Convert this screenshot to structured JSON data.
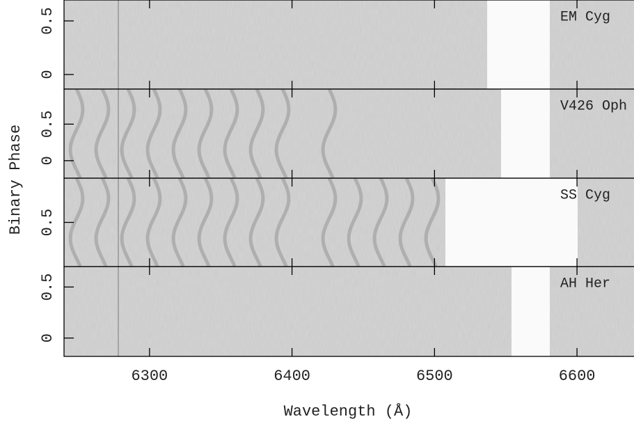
{
  "chart_data": {
    "type": "trailed-spectra",
    "xlabel": "Wavelength (Å)",
    "ylabel": "Binary Phase",
    "xlim": [
      6240,
      6640
    ],
    "xticks": [
      6300,
      6400,
      6500,
      6600
    ],
    "panels": [
      {
        "label": "EM Cyg",
        "ylim": [
          -0.136,
          0.695
        ],
        "yticks": [
          0,
          0.5
        ]
      },
      {
        "label": "V426 Oph",
        "ylim": [
          -0.24,
          0.98
        ],
        "yticks": [
          0,
          0.5
        ]
      },
      {
        "label": "SS Cyg",
        "ylim": [
          0.0,
          1.0
        ],
        "yticks": [
          0.5
        ]
      },
      {
        "label": "AH Her",
        "ylim": [
          -0.18,
          0.7
        ],
        "yticks": [
          0,
          0.5
        ]
      }
    ]
  }
}
